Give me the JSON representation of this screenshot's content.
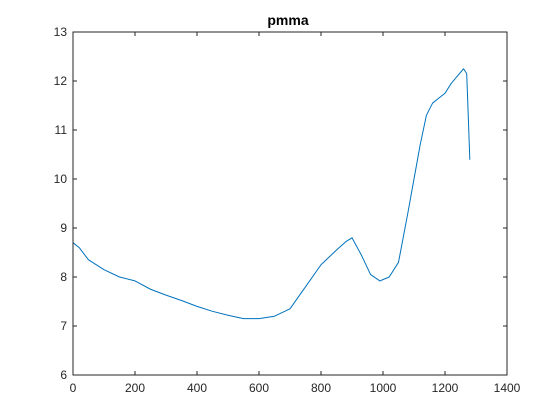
{
  "chart_data": {
    "type": "line",
    "title": "pmma",
    "xlabel": "",
    "ylabel": "",
    "xlim": [
      0,
      1400
    ],
    "ylim": [
      6,
      13
    ],
    "xticks": [
      0,
      200,
      400,
      600,
      800,
      1000,
      1200,
      1400
    ],
    "yticks": [
      6,
      7,
      8,
      9,
      10,
      11,
      12,
      13
    ],
    "grid": false,
    "box": true,
    "line_color": "#0072BD",
    "axis_color": "#262626",
    "series": [
      {
        "x": [
          0,
          20,
          50,
          100,
          150,
          200,
          250,
          300,
          350,
          400,
          450,
          500,
          550,
          600,
          650,
          700,
          750,
          800,
          850,
          880,
          900,
          930,
          960,
          990,
          1020,
          1050,
          1080,
          1100,
          1120,
          1140,
          1160,
          1180,
          1200,
          1220,
          1240,
          1260,
          1270,
          1275,
          1280
        ],
        "y": [
          8.7,
          8.6,
          8.35,
          8.15,
          8.0,
          7.92,
          7.75,
          7.63,
          7.52,
          7.4,
          7.3,
          7.22,
          7.15,
          7.15,
          7.2,
          7.35,
          7.8,
          8.25,
          8.55,
          8.72,
          8.8,
          8.45,
          8.05,
          7.92,
          8.0,
          8.3,
          9.3,
          10.0,
          10.7,
          11.3,
          11.55,
          11.65,
          11.75,
          11.95,
          12.1,
          12.25,
          12.15,
          11.3,
          10.4
        ]
      }
    ]
  }
}
